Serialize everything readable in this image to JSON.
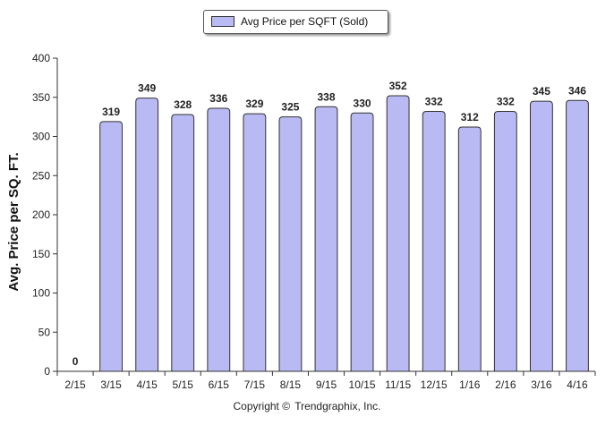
{
  "chart_data": {
    "type": "bar",
    "categories": [
      "2/15",
      "3/15",
      "4/15",
      "5/15",
      "6/15",
      "7/15",
      "8/15",
      "9/15",
      "10/15",
      "11/15",
      "12/15",
      "1/16",
      "2/16",
      "3/16",
      "4/16"
    ],
    "series": [
      {
        "name": "Avg Price per SQFT (Sold)",
        "values": [
          0,
          319,
          349,
          328,
          336,
          329,
          325,
          338,
          330,
          352,
          332,
          312,
          332,
          345,
          346
        ],
        "color": "#b9b9f3"
      }
    ],
    "data_labels": [
      "0",
      "319",
      "349",
      "328",
      "336",
      "329",
      "325",
      "338",
      "330",
      "352",
      "332",
      "312",
      "332",
      "345",
      "346"
    ],
    "ylabel": "Avg. Price per SQ. FT.",
    "xlabel": "",
    "ylim": [
      0,
      400
    ],
    "yticks": [
      0,
      50,
      100,
      150,
      200,
      250,
      300,
      350,
      400
    ],
    "grid": false,
    "legend_position": "top-center"
  },
  "legend": {
    "label": "Avg Price per SQFT (Sold)",
    "swatch_color": "#b9b9f3"
  },
  "footer": {
    "mark": "Copyright ©",
    "text": "Trendgraphix, Inc."
  }
}
